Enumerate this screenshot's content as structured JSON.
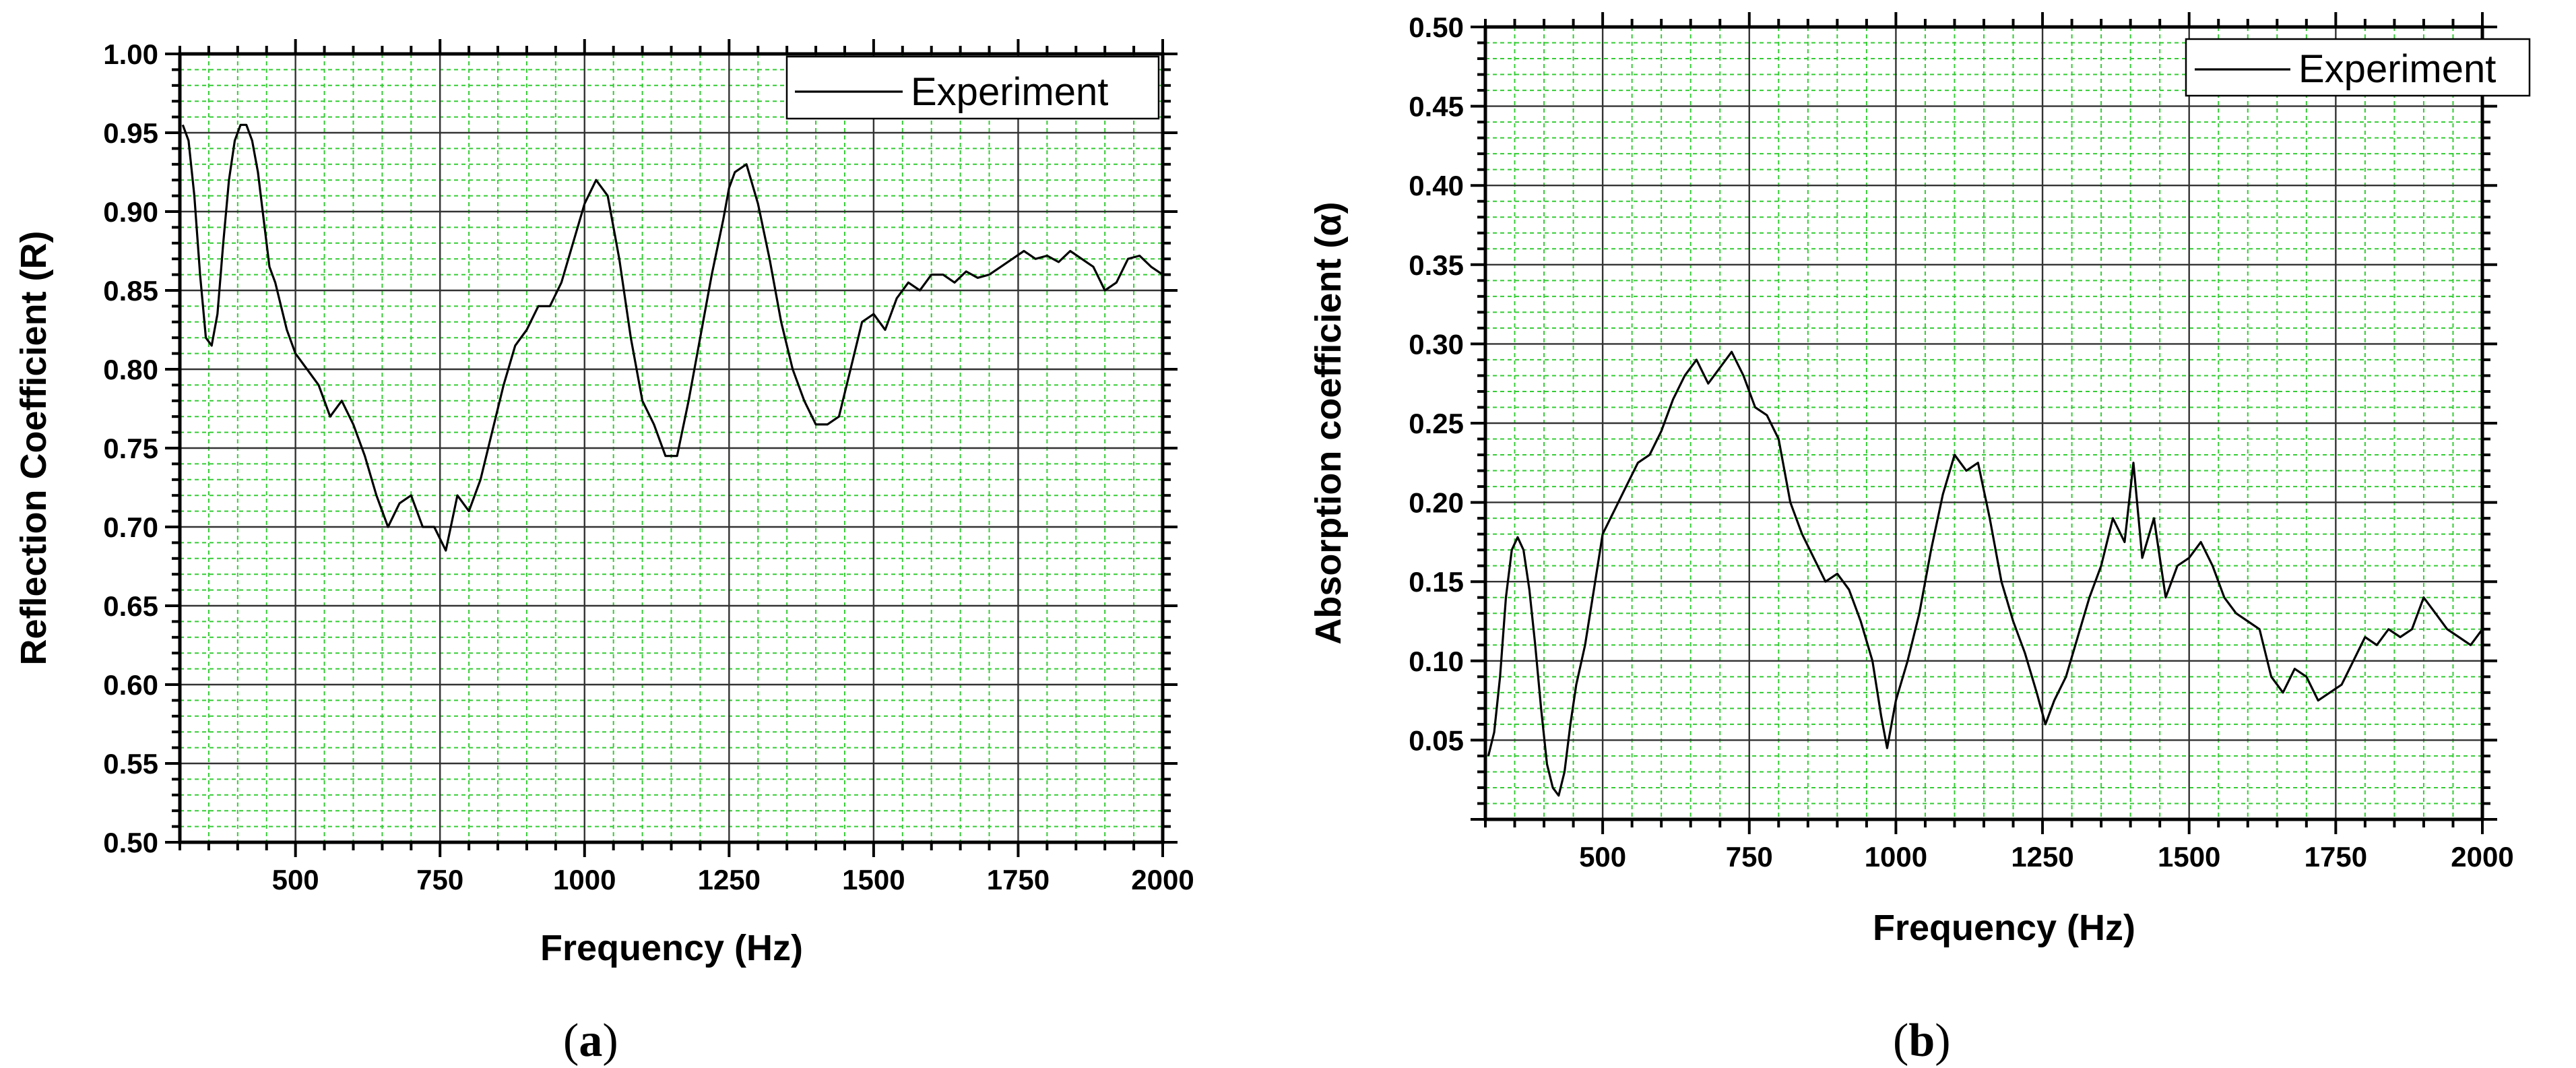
{
  "figure": {
    "captions": [
      {
        "open": "(",
        "letter": "a",
        "close": ")"
      },
      {
        "open": "(",
        "letter": "b",
        "close": ")"
      }
    ]
  },
  "chart_data": [
    {
      "type": "line",
      "title": "",
      "xlabel": "Frequency (Hz)",
      "ylabel": "Reflection Coefficient (R)",
      "xlim": [
        300,
        2000
      ],
      "ylim": [
        0.5,
        1.0
      ],
      "grid": true,
      "legend_position": "top-right",
      "x_ticks": [
        500,
        750,
        1000,
        1250,
        1500,
        1750,
        2000
      ],
      "x_tick_labels": [
        "500",
        "750",
        "1000",
        "1250",
        "1500",
        "1750",
        "2000"
      ],
      "y_ticks": [
        0.5,
        0.55,
        0.6,
        0.65,
        0.7,
        0.75,
        0.8,
        0.85,
        0.9,
        0.95,
        1.0
      ],
      "y_tick_labels": [
        "0.50",
        "0.55",
        "0.60",
        "0.65",
        "0.70",
        "0.75",
        "0.80",
        "0.85",
        "0.90",
        "0.95",
        "1.00"
      ],
      "series": [
        {
          "name": "Experiment",
          "color": "#000000",
          "x": [
            305,
            315,
            325,
            335,
            345,
            355,
            365,
            375,
            385,
            395,
            405,
            415,
            425,
            435,
            445,
            455,
            465,
            475,
            485,
            500,
            520,
            540,
            560,
            580,
            600,
            620,
            640,
            660,
            680,
            700,
            720,
            740,
            760,
            780,
            800,
            820,
            840,
            860,
            880,
            900,
            920,
            940,
            960,
            980,
            1000,
            1020,
            1040,
            1060,
            1080,
            1100,
            1120,
            1140,
            1160,
            1180,
            1200,
            1220,
            1240,
            1250,
            1260,
            1280,
            1300,
            1320,
            1340,
            1360,
            1380,
            1400,
            1420,
            1440,
            1460,
            1480,
            1500,
            1520,
            1540,
            1560,
            1580,
            1600,
            1620,
            1640,
            1660,
            1680,
            1700,
            1720,
            1740,
            1760,
            1780,
            1800,
            1820,
            1840,
            1860,
            1880,
            1900,
            1920,
            1940,
            1960,
            1980,
            2000
          ],
          "y": [
            0.955,
            0.945,
            0.91,
            0.86,
            0.82,
            0.815,
            0.835,
            0.88,
            0.92,
            0.945,
            0.955,
            0.955,
            0.945,
            0.925,
            0.895,
            0.865,
            0.855,
            0.84,
            0.825,
            0.81,
            0.8,
            0.79,
            0.77,
            0.78,
            0.765,
            0.745,
            0.72,
            0.7,
            0.715,
            0.72,
            0.7,
            0.7,
            0.685,
            0.72,
            0.71,
            0.73,
            0.76,
            0.79,
            0.815,
            0.825,
            0.84,
            0.84,
            0.855,
            0.88,
            0.905,
            0.92,
            0.91,
            0.87,
            0.82,
            0.78,
            0.765,
            0.745,
            0.745,
            0.78,
            0.82,
            0.86,
            0.895,
            0.915,
            0.925,
            0.93,
            0.905,
            0.87,
            0.83,
            0.8,
            0.78,
            0.765,
            0.765,
            0.77,
            0.8,
            0.83,
            0.835,
            0.825,
            0.845,
            0.855,
            0.85,
            0.86,
            0.86,
            0.855,
            0.862,
            0.858,
            0.86,
            0.865,
            0.87,
            0.875,
            0.87,
            0.872,
            0.868,
            0.875,
            0.87,
            0.865,
            0.85,
            0.855,
            0.87,
            0.872,
            0.865,
            0.86
          ]
        }
      ]
    },
    {
      "type": "line",
      "title": "",
      "xlabel": "Frequency (Hz)",
      "ylabel": "Absorption coefficient (α)",
      "xlim": [
        300,
        2000
      ],
      "ylim": [
        0.0,
        0.5
      ],
      "grid": true,
      "legend_position": "top-right",
      "x_ticks": [
        500,
        750,
        1000,
        1250,
        1500,
        1750,
        2000
      ],
      "x_tick_labels": [
        "500",
        "750",
        "1000",
        "1250",
        "1500",
        "1750",
        "2000"
      ],
      "y_ticks": [
        0.05,
        0.1,
        0.15,
        0.2,
        0.25,
        0.3,
        0.35,
        0.4,
        0.45,
        0.5
      ],
      "y_tick_labels": [
        "0.05",
        "0.10",
        "0.15",
        "0.20",
        "0.25",
        "0.30",
        "0.35",
        "0.40",
        "0.45",
        "0.50"
      ],
      "series": [
        {
          "name": "Experiment",
          "color": "#000000",
          "x": [
            305,
            315,
            325,
            335,
            345,
            355,
            365,
            375,
            385,
            395,
            405,
            415,
            425,
            435,
            445,
            455,
            470,
            485,
            500,
            520,
            540,
            560,
            580,
            600,
            620,
            640,
            660,
            680,
            700,
            720,
            740,
            760,
            780,
            800,
            820,
            840,
            860,
            880,
            900,
            920,
            940,
            960,
            975,
            985,
            1000,
            1020,
            1040,
            1060,
            1080,
            1100,
            1120,
            1140,
            1160,
            1180,
            1200,
            1220,
            1240,
            1255,
            1270,
            1290,
            1310,
            1330,
            1350,
            1370,
            1390,
            1405,
            1420,
            1440,
            1460,
            1480,
            1500,
            1520,
            1540,
            1560,
            1580,
            1600,
            1620,
            1640,
            1660,
            1680,
            1700,
            1720,
            1740,
            1760,
            1780,
            1800,
            1820,
            1840,
            1860,
            1880,
            1900,
            1920,
            1940,
            1960,
            1980,
            2000
          ],
          "y": [
            0.04,
            0.055,
            0.09,
            0.14,
            0.17,
            0.178,
            0.17,
            0.145,
            0.11,
            0.07,
            0.035,
            0.02,
            0.015,
            0.03,
            0.06,
            0.085,
            0.11,
            0.145,
            0.18,
            0.195,
            0.21,
            0.225,
            0.23,
            0.245,
            0.265,
            0.28,
            0.29,
            0.275,
            0.285,
            0.295,
            0.28,
            0.26,
            0.255,
            0.24,
            0.2,
            0.18,
            0.165,
            0.15,
            0.155,
            0.145,
            0.125,
            0.1,
            0.065,
            0.045,
            0.075,
            0.1,
            0.13,
            0.17,
            0.205,
            0.23,
            0.22,
            0.225,
            0.19,
            0.15,
            0.125,
            0.105,
            0.08,
            0.06,
            0.075,
            0.09,
            0.115,
            0.14,
            0.16,
            0.19,
            0.175,
            0.225,
            0.165,
            0.19,
            0.14,
            0.16,
            0.165,
            0.175,
            0.16,
            0.14,
            0.13,
            0.125,
            0.12,
            0.09,
            0.08,
            0.095,
            0.09,
            0.075,
            0.08,
            0.085,
            0.1,
            0.115,
            0.11,
            0.12,
            0.115,
            0.12,
            0.14,
            0.13,
            0.12,
            0.115,
            0.11,
            0.12
          ]
        }
      ]
    }
  ]
}
